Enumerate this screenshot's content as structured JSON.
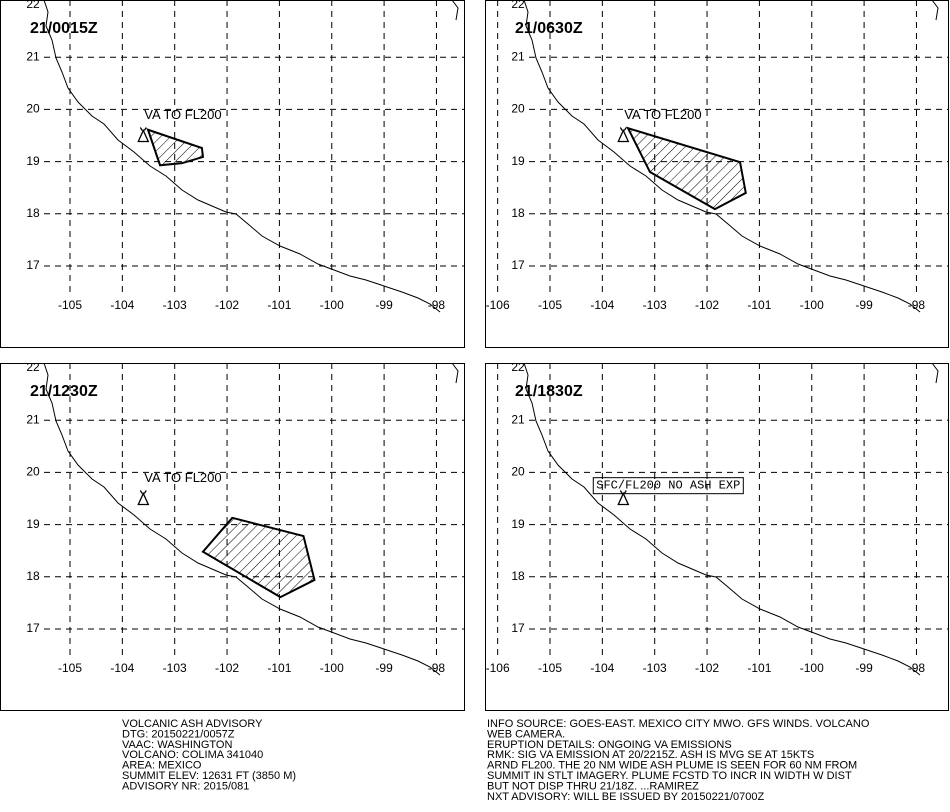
{
  "panels": [
    {
      "time": "21/0015Z",
      "annotation": "VA TO FL200",
      "lon_ticks": [
        -105,
        -104,
        -103,
        -102,
        -101,
        -100,
        -99,
        -98
      ],
      "lat_ticks": [
        22,
        21,
        20,
        19,
        18,
        17
      ],
      "volcano": {
        "lon": -103.6,
        "lat": 19.5
      },
      "ash_lon": [
        -103.51,
        -103.28,
        -102.86,
        -102.46,
        -102.48
      ],
      "ash_lat": [
        19.61,
        18.93,
        18.97,
        19.09,
        19.26
      ]
    },
    {
      "time": "21/0630Z",
      "annotation": "VA TO FL200",
      "lon_ticks": [
        -106,
        -105,
        -104,
        -103,
        -102,
        -101,
        -100,
        -99,
        -98
      ],
      "lat_ticks": [
        22,
        21,
        20,
        19,
        18,
        17
      ],
      "volcano": {
        "lon": -103.6,
        "lat": 19.5
      },
      "ash_lon": [
        -103.51,
        -103.09,
        -101.85,
        -101.26,
        -101.37
      ],
      "ash_lat": [
        19.64,
        18.8,
        18.09,
        18.4,
        18.99
      ]
    },
    {
      "time": "21/1230Z",
      "annotation": "VA TO FL200",
      "lon_ticks": [
        -105,
        -104,
        -103,
        -102,
        -101,
        -100,
        -99,
        -98
      ],
      "lat_ticks": [
        22,
        21,
        20,
        19,
        18,
        17
      ],
      "volcano": {
        "lon": -103.6,
        "lat": 19.5
      },
      "ash_lon": [
        -101.9,
        -100.54,
        -100.33,
        -100.98,
        -102.46
      ],
      "ash_lat": [
        19.13,
        18.78,
        17.94,
        17.61,
        18.48
      ]
    },
    {
      "time": "21/1830Z",
      "annotation": "SFC/FL200 NO ASH EXP",
      "boxed": true,
      "lon_ticks": [
        -106,
        -105,
        -104,
        -103,
        -102,
        -101,
        -100,
        -99,
        -98
      ],
      "lat_ticks": [
        22,
        21,
        20,
        19,
        18,
        17
      ],
      "volcano": {
        "lon": -103.6,
        "lat": 19.5
      }
    }
  ],
  "advisory": {
    "left_lines": [
      "VOLCANIC ASH ADVISORY",
      "DTG: 20150221/0057Z",
      "VAAC: WASHINGTON",
      "VOLCANO: COLIMA 341040",
      "AREA: MEXICO",
      "SUMMIT ELEV: 12631 FT (3850 M)",
      "ADVISORY NR: 2015/081"
    ],
    "right_lines": [
      "INFO SOURCE: GOES-EAST. MEXICO CITY MWO. GFS WINDS. VOLCANO",
      "WEB CAMERA.",
      "ERUPTION DETAILS: ONGOING VA EMISSIONS",
      "RMK: SIG VA EMISSION AT 20/2215Z. ASH IS MVG SE AT 15KTS",
      "ARND FL200. THE 20 NM WIDE ASH PLUME IS SEEN FOR 60 NM FROM",
      "SUMMIT IN STLT IMAGERY. PLUME FCSTD TO INCR IN WIDTH W DIST",
      "BUT NOT DISP THRU 21/18Z. ...RAMIREZ",
      "NXT ADVISORY: WILL BE ISSUED BY 20150221/0700Z"
    ]
  }
}
